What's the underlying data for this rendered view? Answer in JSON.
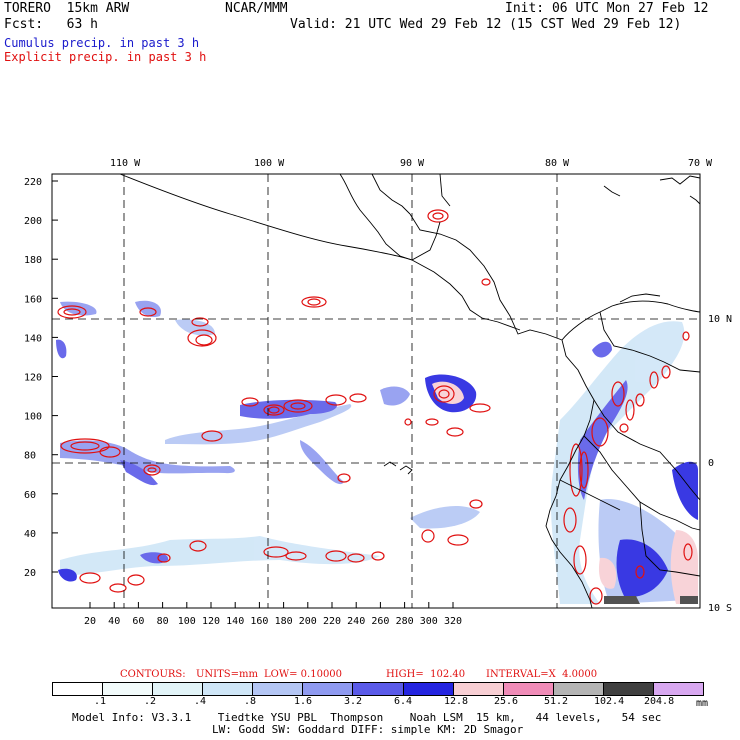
{
  "header": {
    "model": "TORERO  15km ARW",
    "org": "NCAR/MMM",
    "init": "Init: 06 UTC Mon 27 Feb 12",
    "fcst": "Fcst:   63 h",
    "valid": "Valid: 21 UTC Wed 29 Feb 12 (15 CST Wed 29 Feb 12)",
    "legend_cumulus": "Cumulus precip. in past 3 h",
    "legend_explicit": "Explicit precip. in past 3 h"
  },
  "map": {
    "lon_labels": [
      "110 W",
      "100 W",
      "90 W",
      "80 W",
      "70 W"
    ],
    "lat_labels": [
      "10 N",
      "0",
      "10 S"
    ],
    "y_ticks": [
      "220",
      "200",
      "180",
      "160",
      "140",
      "120",
      "100",
      "80",
      "60",
      "40",
      "20"
    ],
    "x_ticks": [
      "20",
      "40",
      "60",
      "80",
      "100",
      "120",
      "140",
      "160",
      "180",
      "200",
      "220",
      "240",
      "260",
      "280",
      "300",
      "320"
    ]
  },
  "contour_info": {
    "contours": "CONTOURS:",
    "units": "UNITS=mm",
    "low": "LOW= 0.10000",
    "high": "HIGH=  102.40",
    "interval": "INTERVAL=X  4.0000"
  },
  "colorbar": {
    "unit": "mm",
    "labels": [
      ".1",
      ".2",
      ".4",
      ".8",
      "1.6",
      "3.2",
      "6.4",
      "12.8",
      "25.6",
      "51.2",
      "102.4",
      "204.8"
    ],
    "colors": [
      "#ffffff",
      "#f2fbfb",
      "#e2f4f8",
      "#cfe6f7",
      "#b4c6f4",
      "#8f9af0",
      "#5a5ae8",
      "#2424e0",
      "#f8cfd4",
      "#f08cb8",
      "#b4b4b4",
      "#404040",
      "#d8a8f0"
    ]
  },
  "footer": {
    "line1": "Model Info: V3.3.1    Tiedtke YSU PBL  Thompson    Noah LSM  15 km,   44 levels,   54 sec",
    "line2": "LW: Godd SW: Goddard DIFF: simple KM: 2D Smagor"
  }
}
